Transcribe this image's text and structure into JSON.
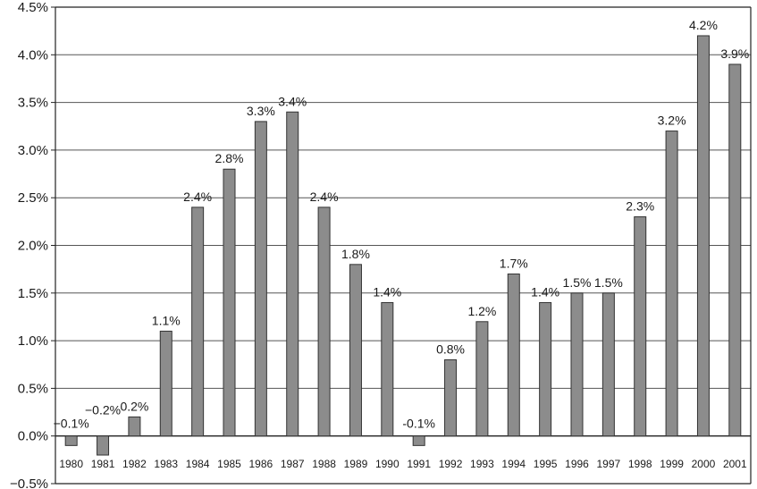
{
  "chart_data": {
    "type": "bar",
    "title": "",
    "xlabel": "",
    "ylabel": "",
    "ylim": [
      -0.5,
      4.5
    ],
    "y_ticks": [
      "4.5%",
      "4.0%",
      "3.5%",
      "3.0%",
      "2.5%",
      "2.0%",
      "1.5%",
      "1.0%",
      "0.5%",
      "0.0%",
      "−0.5%"
    ],
    "y_tick_values": [
      4.5,
      4.0,
      3.5,
      3.0,
      2.5,
      2.0,
      1.5,
      1.0,
      0.5,
      0.0,
      -0.5
    ],
    "grid": true,
    "legend": "none",
    "bar_color": "#8c8c8c",
    "categories": [
      "1980",
      "1981",
      "1982",
      "1983",
      "1984",
      "1985",
      "1986",
      "1987",
      "1988",
      "1989",
      "1990",
      "1991",
      "1992",
      "1993",
      "1994",
      "1995",
      "1996",
      "1997",
      "1998",
      "1999",
      "2000",
      "2001"
    ],
    "values": [
      -0.1,
      -0.2,
      0.2,
      1.1,
      2.4,
      2.8,
      3.3,
      3.4,
      2.4,
      1.8,
      1.4,
      -0.1,
      0.8,
      1.2,
      1.7,
      1.4,
      1.5,
      1.5,
      2.3,
      3.2,
      4.2,
      3.9
    ],
    "data_labels": [
      "−0.1%",
      "−0.2%",
      "0.2%",
      "1.1%",
      "2.4%",
      "2.8%",
      "3.3%",
      "3.4%",
      "2.4%",
      "1.8%",
      "1.4%",
      "-0.1%",
      "0.8%",
      "1.2%",
      "1.7%",
      "1.4%",
      "1.5%",
      "1.5%",
      "2.3%",
      "3.2%",
      "4.2%",
      "3.9%"
    ]
  }
}
